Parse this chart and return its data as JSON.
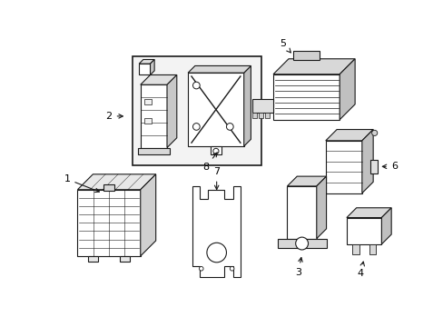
{
  "bg_color": "#ffffff",
  "line_color": "#1a1a1a",
  "box_fill": "#f5f5f5",
  "fig_width": 4.89,
  "fig_height": 3.6,
  "dpi": 100
}
